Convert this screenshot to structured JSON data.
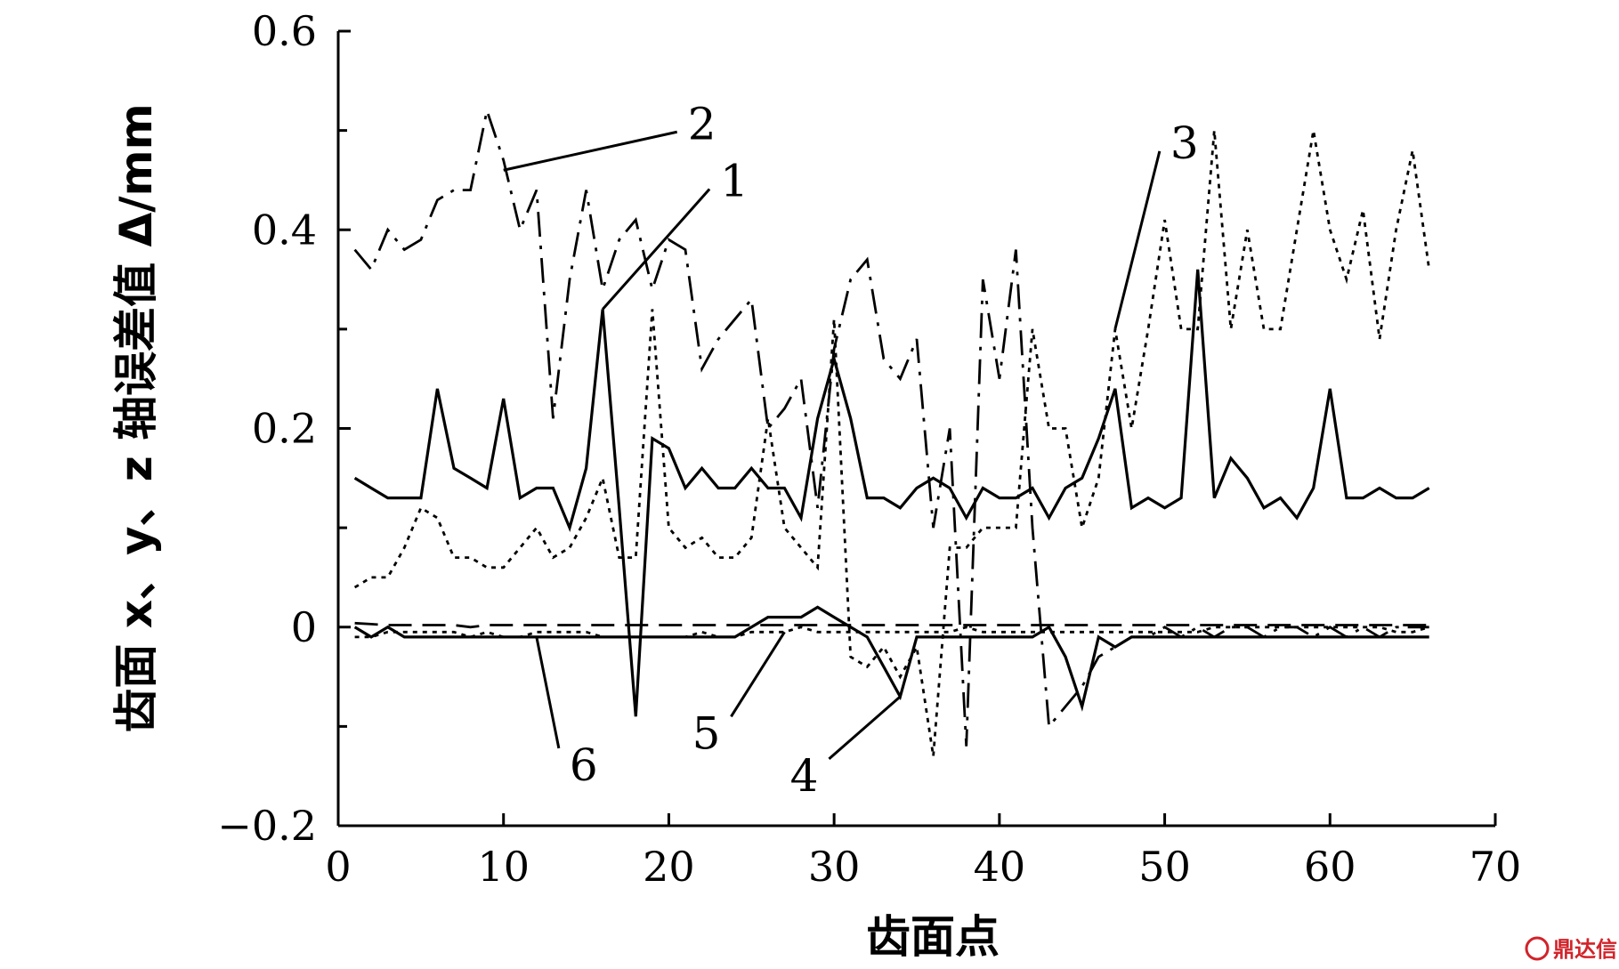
{
  "chart_data": {
    "type": "line",
    "xlabel": "齿面点",
    "ylabel": "齿面 x、y、z 轴误差值 Δ/mm",
    "xlim": [
      0,
      70
    ],
    "ylim": [
      -0.2,
      0.6
    ],
    "x_ticks": [
      "0",
      "10",
      "20",
      "30",
      "40",
      "50",
      "60",
      "70"
    ],
    "y_ticks": [
      "−0.2",
      "0",
      "0.2",
      "0.4",
      "0.6"
    ],
    "y_tick_values": [
      -0.2,
      0,
      0.2,
      0.4,
      0.6
    ],
    "x_tick_values": [
      0,
      10,
      20,
      30,
      40,
      50,
      60,
      70
    ],
    "grid": false,
    "colors": {
      "line": "#000000",
      "watermark": "#d2232a"
    },
    "series": [
      {
        "label": "1",
        "style": "solid",
        "x": [
          1,
          2,
          3,
          4,
          5,
          6,
          7,
          8,
          9,
          10,
          11,
          12,
          13,
          14,
          15,
          16,
          17,
          18,
          19,
          20,
          21,
          22,
          23,
          24,
          25,
          26,
          27,
          28,
          29,
          30,
          31,
          32,
          33,
          34,
          35,
          36,
          37,
          38,
          39,
          40,
          41,
          42,
          43,
          44,
          45,
          46,
          47,
          48,
          49,
          50,
          51,
          52,
          53,
          54,
          55,
          56,
          57,
          58,
          59,
          60,
          61,
          62,
          63,
          64,
          65,
          66
        ],
        "y": [
          0.15,
          0.14,
          0.13,
          0.13,
          0.13,
          0.24,
          0.16,
          0.15,
          0.14,
          0.23,
          0.13,
          0.14,
          0.14,
          0.1,
          0.16,
          0.32,
          0.12,
          -0.09,
          0.19,
          0.18,
          0.14,
          0.16,
          0.14,
          0.14,
          0.16,
          0.14,
          0.14,
          0.11,
          0.21,
          0.27,
          0.21,
          0.13,
          0.13,
          0.12,
          0.14,
          0.15,
          0.14,
          0.11,
          0.14,
          0.13,
          0.13,
          0.14,
          0.11,
          0.14,
          0.15,
          0.19,
          0.24,
          0.12,
          0.13,
          0.12,
          0.13,
          0.36,
          0.13,
          0.17,
          0.15,
          0.12,
          0.13,
          0.11,
          0.14,
          0.24,
          0.13,
          0.13,
          0.14,
          0.13,
          0.13,
          0.14
        ]
      },
      {
        "label": "2",
        "style": "dashdot",
        "x": [
          1,
          2,
          3,
          4,
          5,
          6,
          7,
          8,
          9,
          10,
          11,
          12,
          13,
          14,
          15,
          16,
          17,
          18,
          19,
          20,
          21,
          22,
          23,
          24,
          25,
          26,
          27,
          28,
          29,
          30,
          31,
          32,
          33,
          34,
          35,
          36,
          37,
          38,
          39,
          40,
          41,
          42,
          43,
          44,
          45,
          46,
          47,
          48,
          49,
          50,
          51,
          52,
          53,
          54,
          55,
          56,
          57,
          58,
          59,
          60,
          61,
          62,
          63,
          64,
          65,
          66
        ],
        "y": [
          0.38,
          0.36,
          0.4,
          0.38,
          0.39,
          0.43,
          0.44,
          0.44,
          0.52,
          0.47,
          0.4,
          0.44,
          0.21,
          0.35,
          0.44,
          0.34,
          0.39,
          0.41,
          0.34,
          0.39,
          0.38,
          0.26,
          0.29,
          0.31,
          0.33,
          0.2,
          0.22,
          0.25,
          0.12,
          0.28,
          0.35,
          0.37,
          0.27,
          0.25,
          0.29,
          0.1,
          0.2,
          -0.12,
          0.35,
          0.25,
          0.38,
          0.1,
          -0.1,
          -0.08,
          -0.06,
          -0.03,
          -0.02,
          -0.01,
          -0.01,
          0.0,
          -0.01,
          0.0,
          -0.01,
          0.0,
          0.0,
          -0.01,
          0.0,
          0.0,
          -0.01,
          0.0,
          -0.01,
          0.0,
          -0.01,
          0.0,
          0.0,
          0.0
        ]
      },
      {
        "label": "3",
        "style": "dotted",
        "x": [
          1,
          2,
          3,
          4,
          5,
          6,
          7,
          8,
          9,
          10,
          11,
          12,
          13,
          14,
          15,
          16,
          17,
          18,
          19,
          20,
          21,
          22,
          23,
          24,
          25,
          26,
          27,
          28,
          29,
          30,
          31,
          32,
          33,
          34,
          35,
          36,
          37,
          38,
          39,
          40,
          41,
          42,
          43,
          44,
          45,
          46,
          47,
          48,
          49,
          50,
          51,
          52,
          53,
          54,
          55,
          56,
          57,
          58,
          59,
          60,
          61,
          62,
          63,
          64,
          65,
          66
        ],
        "y": [
          0.04,
          0.05,
          0.05,
          0.08,
          0.12,
          0.11,
          0.07,
          0.07,
          0.06,
          0.06,
          0.08,
          0.1,
          0.07,
          0.08,
          0.11,
          0.15,
          0.07,
          0.07,
          0.32,
          0.1,
          0.08,
          0.09,
          0.07,
          0.07,
          0.09,
          0.21,
          0.1,
          0.08,
          0.06,
          0.31,
          -0.03,
          -0.04,
          -0.02,
          -0.05,
          -0.02,
          -0.13,
          0.08,
          0.08,
          0.1,
          0.1,
          0.1,
          0.3,
          0.2,
          0.2,
          0.1,
          0.15,
          0.3,
          0.2,
          0.3,
          0.41,
          0.3,
          0.3,
          0.5,
          0.3,
          0.4,
          0.3,
          0.3,
          0.4,
          0.5,
          0.4,
          0.35,
          0.42,
          0.29,
          0.4,
          0.48,
          0.36
        ]
      },
      {
        "label": "4",
        "style": "solid",
        "x": [
          1,
          2,
          3,
          4,
          5,
          6,
          7,
          8,
          9,
          10,
          11,
          12,
          13,
          14,
          15,
          16,
          17,
          18,
          19,
          20,
          21,
          22,
          23,
          24,
          25,
          26,
          27,
          28,
          29,
          30,
          31,
          32,
          33,
          34,
          35,
          36,
          37,
          38,
          39,
          40,
          41,
          42,
          43,
          44,
          45,
          46,
          47,
          48,
          49,
          50,
          51,
          52,
          53,
          54,
          55,
          56,
          57,
          58,
          59,
          60,
          61,
          62,
          63,
          64,
          65,
          66
        ],
        "y": [
          0.0,
          -0.01,
          0.0,
          -0.01,
          -0.01,
          -0.01,
          -0.01,
          -0.01,
          -0.01,
          -0.01,
          -0.01,
          -0.01,
          -0.01,
          -0.01,
          -0.01,
          -0.01,
          -0.01,
          -0.01,
          -0.01,
          -0.01,
          -0.01,
          -0.01,
          -0.01,
          -0.01,
          0.0,
          0.01,
          0.01,
          0.01,
          0.02,
          0.01,
          0.0,
          -0.01,
          -0.04,
          -0.07,
          -0.01,
          -0.01,
          -0.01,
          -0.01,
          -0.01,
          -0.01,
          -0.01,
          -0.01,
          0.0,
          -0.03,
          -0.08,
          -0.01,
          -0.02,
          -0.01,
          -0.01,
          -0.01,
          -0.01,
          -0.01,
          -0.01,
          -0.01,
          -0.01,
          -0.01,
          -0.01,
          -0.01,
          -0.01,
          -0.01,
          -0.01,
          -0.01,
          -0.01,
          -0.01,
          -0.01,
          -0.01
        ]
      },
      {
        "label": "5",
        "style": "dashed",
        "x": [
          1,
          2,
          3,
          4,
          5,
          6,
          7,
          8,
          9,
          10,
          11,
          12,
          13,
          14,
          15,
          16,
          17,
          18,
          19,
          20,
          21,
          22,
          23,
          24,
          25,
          26,
          27,
          28,
          29,
          30,
          31,
          32,
          33,
          34,
          35,
          36,
          37,
          38,
          39,
          40,
          41,
          42,
          43,
          44,
          45,
          46,
          47,
          48,
          49,
          50,
          51,
          52,
          53,
          54,
          55,
          56,
          57,
          58,
          59,
          60,
          61,
          62,
          63,
          64,
          65,
          66
        ],
        "y": [
          0.004,
          0.003,
          0.002,
          0.002,
          0.002,
          0.002,
          0.002,
          0.0,
          0.002,
          0.002,
          0.002,
          0.002,
          0.002,
          0.002,
          0.002,
          0.002,
          0.002,
          0.002,
          0.002,
          0.002,
          0.002,
          0.002,
          0.002,
          0.002,
          0.002,
          0.002,
          0.002,
          0.002,
          0.002,
          0.002,
          0.002,
          0.002,
          0.002,
          0.002,
          0.002,
          0.002,
          0.002,
          0.002,
          0.002,
          0.002,
          0.002,
          0.002,
          0.002,
          0.002,
          0.002,
          0.002,
          0.002,
          0.002,
          0.002,
          0.002,
          0.002,
          0.002,
          0.002,
          0.002,
          0.002,
          0.002,
          0.002,
          0.002,
          0.002,
          0.002,
          0.002,
          0.002,
          0.002,
          0.002,
          0.002,
          0.002
        ]
      },
      {
        "label": "6",
        "style": "dotted",
        "x": [
          1,
          2,
          3,
          4,
          5,
          6,
          7,
          8,
          9,
          10,
          11,
          12,
          13,
          14,
          15,
          16,
          17,
          18,
          19,
          20,
          21,
          22,
          23,
          24,
          25,
          26,
          27,
          28,
          29,
          30,
          31,
          32,
          33,
          34,
          35,
          36,
          37,
          38,
          39,
          40,
          41,
          42,
          43,
          44,
          45,
          46,
          47,
          48,
          49,
          50,
          51,
          52,
          53,
          54,
          55,
          56,
          57,
          58,
          59,
          60,
          61,
          62,
          63,
          64,
          65,
          66
        ],
        "y": [
          -0.01,
          -0.01,
          -0.005,
          -0.005,
          -0.005,
          -0.005,
          -0.005,
          -0.01,
          -0.005,
          -0.01,
          -0.01,
          -0.005,
          -0.005,
          -0.005,
          -0.005,
          -0.01,
          -0.01,
          -0.01,
          -0.01,
          -0.01,
          -0.01,
          -0.005,
          -0.01,
          -0.01,
          -0.005,
          -0.005,
          -0.005,
          0.0,
          -0.005,
          -0.005,
          -0.005,
          -0.005,
          -0.005,
          -0.005,
          -0.005,
          -0.005,
          -0.005,
          0.0,
          -0.005,
          -0.005,
          -0.005,
          -0.005,
          -0.005,
          -0.005,
          -0.005,
          -0.005,
          -0.005,
          -0.005,
          -0.005,
          -0.005,
          -0.005,
          -0.005,
          0.0,
          0.0,
          0.0,
          0.0,
          0.0,
          0.0,
          0.0,
          0.0,
          0.0,
          0.0,
          0.0,
          -0.005,
          -0.005,
          0.0
        ]
      }
    ],
    "annotations": [
      {
        "text": "1",
        "point_x": 16,
        "point_y": 0.32
      },
      {
        "text": "2",
        "point_x": 10,
        "point_y": 0.46
      },
      {
        "text": "3",
        "point_x": 47,
        "point_y": 0.3
      },
      {
        "text": "4",
        "point_x": 34,
        "point_y": -0.07
      },
      {
        "text": "5",
        "point_x": 27,
        "point_y": -0.005
      },
      {
        "text": "6",
        "point_x": 12,
        "point_y": -0.01
      }
    ]
  },
  "watermark": {
    "text": "鼎达信"
  }
}
